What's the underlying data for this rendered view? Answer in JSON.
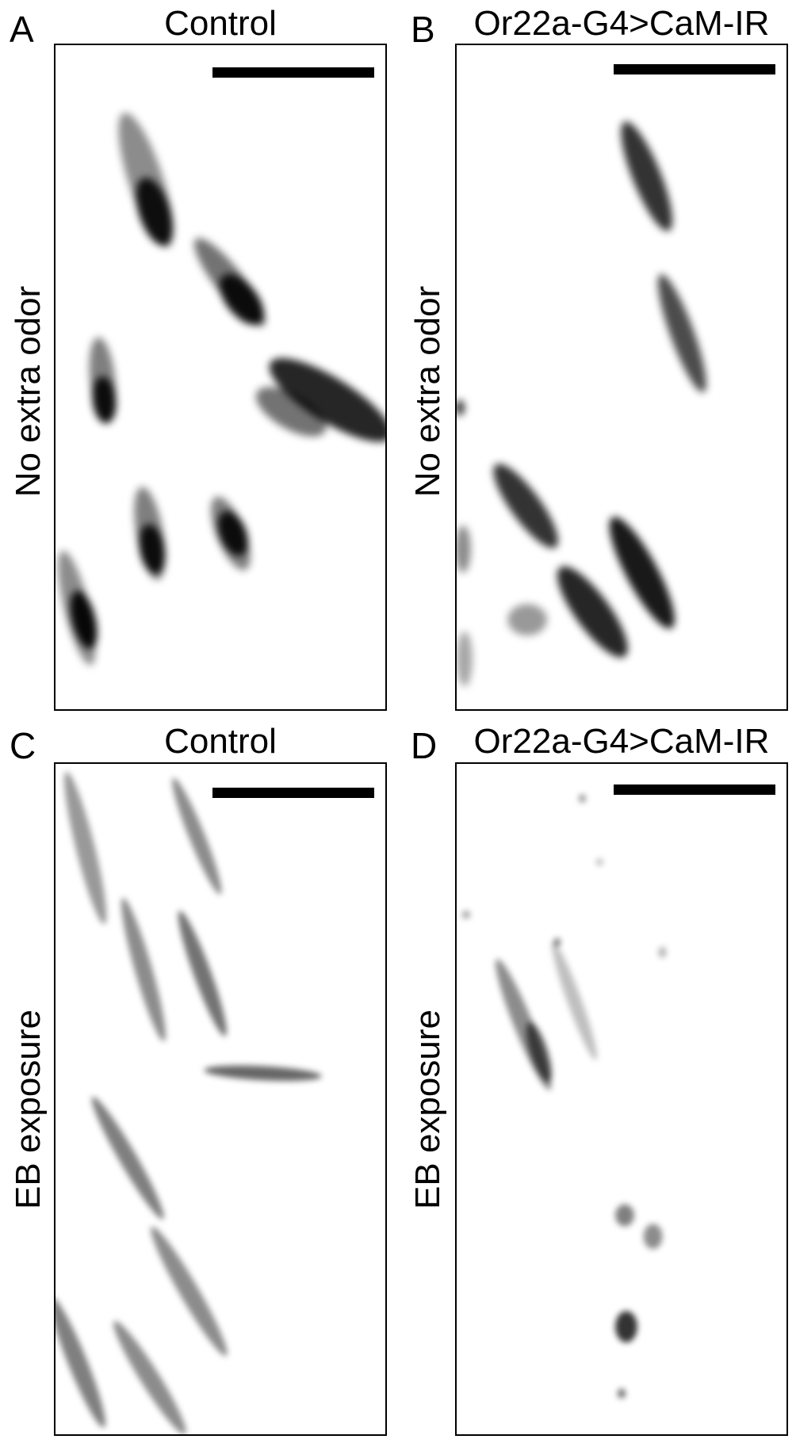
{
  "panels": {
    "a": {
      "letter": "A",
      "title": "Control"
    },
    "b": {
      "letter": "B",
      "title": "Or22a-G4>CaM-IR"
    },
    "c": {
      "letter": "C",
      "title": "Control"
    },
    "d": {
      "letter": "D",
      "title": "Or22a-G4>CaM-IR"
    }
  },
  "row_labels": {
    "top": "No extra odor",
    "bottom": "EB exposure"
  },
  "colors": {
    "background": "#ffffff",
    "ink": "#000000"
  }
}
